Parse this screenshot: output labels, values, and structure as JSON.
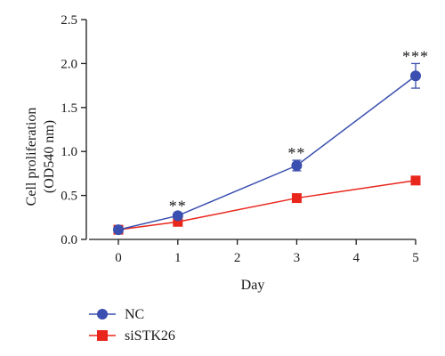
{
  "chart_data": {
    "type": "line",
    "title": "",
    "xlabel": "Day",
    "ylabel_line1": "Cell proliferation",
    "ylabel_line2": "(OD540 nm)",
    "xlim": [
      -0.5,
      5
    ],
    "ylim": [
      0,
      2.5
    ],
    "x_ticks": [
      0,
      1,
      2,
      3,
      4,
      5
    ],
    "x_tick_labels": [
      "0",
      "1",
      "2",
      "3",
      "4",
      "5"
    ],
    "y_ticks": [
      0,
      0.5,
      1.0,
      1.5,
      2.0,
      2.5
    ],
    "y_tick_labels": [
      "0.0",
      "0.5",
      "1.0",
      "1.5",
      "2.0",
      "2.5"
    ],
    "grid": false,
    "legend_position": "bottom-left",
    "series": [
      {
        "name": "NC",
        "color": "#3a4fb0",
        "marker": "circle",
        "x": [
          0,
          1,
          3,
          5
        ],
        "y": [
          0.11,
          0.27,
          0.84,
          1.86
        ],
        "error": [
          0.02,
          0.03,
          0.06,
          0.14
        ]
      },
      {
        "name": "siSTK26",
        "color": "#e8261c",
        "marker": "square",
        "x": [
          0,
          1,
          3,
          5
        ],
        "y": [
          0.11,
          0.2,
          0.47,
          0.67
        ],
        "error": [
          0.01,
          0.02,
          0.02,
          0.02
        ]
      }
    ],
    "annotations": [
      {
        "x": 1,
        "y": 0.3,
        "text": "**"
      },
      {
        "x": 3,
        "y": 0.9,
        "text": "**"
      },
      {
        "x": 5,
        "y": 2.0,
        "text": "***"
      }
    ]
  }
}
